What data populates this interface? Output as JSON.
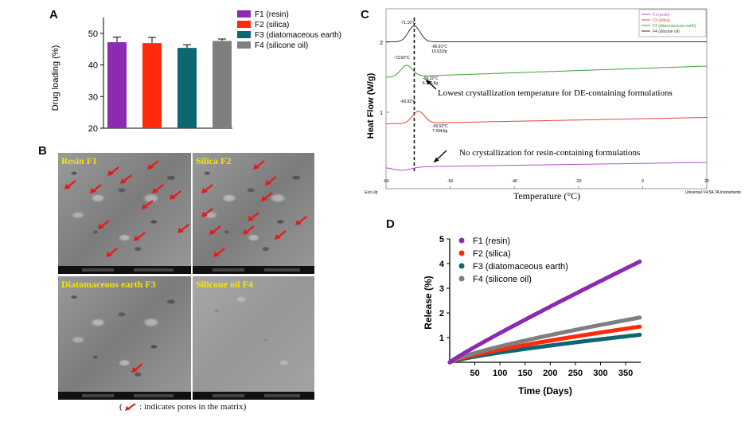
{
  "panels": {
    "a": "A",
    "b": "B",
    "c": "C",
    "d": "D"
  },
  "colors": {
    "f1": "#8a2bb0",
    "f2": "#ff2a0a",
    "f3": "#0e6672",
    "f4": "#7f7f7f",
    "arrow": "#e31b1b",
    "sem_label": "#f5e600"
  },
  "chart_data": [
    {
      "id": "A",
      "type": "bar",
      "categories": [
        "F1 (resin)",
        "F2 (silica)",
        "F3 (diatomaceous earth)",
        "F4 (silicone oil)"
      ],
      "values": [
        47.2,
        46.9,
        45.4,
        47.6
      ],
      "errors": [
        1.6,
        1.8,
        1.0,
        0.6
      ],
      "ylabel": "Drug loading (%)",
      "ylim": [
        20,
        55
      ],
      "yticks": [
        "20",
        "30",
        "40",
        "50"
      ],
      "legend": [
        "F1 (resin)",
        "F2 (silica)",
        "F3 (diatomaceous earth)",
        "F4 (silicone oil)"
      ],
      "legend_position": "top-right"
    },
    {
      "id": "C",
      "type": "line",
      "xlabel": "Temperature (°C)",
      "ylabel": "Heat Flow (W/g)",
      "xlim": [
        -80,
        20
      ],
      "xticks": [
        "-80",
        "-60",
        "-40",
        "-20",
        "0",
        "20"
      ],
      "yticks": [
        "2",
        "1"
      ],
      "legend": [
        "F1 (resin)",
        "F2 (silica)",
        "F3 (diatomaceous earth)",
        "F4 (silicone oil)"
      ],
      "legend_position": "top-right",
      "peaks": [
        {
          "series": "F4 (silicone oil)",
          "peak": "-71.16°C",
          "onset": "-66.91°C",
          "enthalpy": "10.63J/g"
        },
        {
          "series": "F3 (diatomaceous earth)",
          "peak": "-73.60°C",
          "onset": "-69.22°C",
          "enthalpy": "6.326J/g"
        },
        {
          "series": "F2 (silica)",
          "peak": "-69.93°C",
          "onset": "-66.52°C",
          "enthalpy": "7.394J/g"
        }
      ],
      "annotations": [
        "Lowest crystallization temperature for DE-containing formulations",
        "No crystallization for resin-containing formulations"
      ],
      "footer_left": "Exo Up",
      "footer_right": "Universal V4.5A TA Instruments"
    },
    {
      "id": "D",
      "type": "scatter",
      "xlabel": "Time (Days)",
      "ylabel": "Release (%)",
      "xlim": [
        0,
        380
      ],
      "ylim": [
        0,
        5
      ],
      "xticks": [
        "50",
        "100",
        "150",
        "200",
        "250",
        "300",
        "350"
      ],
      "yticks": [
        "1",
        "2",
        "3",
        "4",
        "5"
      ],
      "legend_position": "top-left",
      "series": [
        {
          "name": "F1 (resin)",
          "rate": 4.1
        },
        {
          "name": "F2 (silica)",
          "rate": 1.45
        },
        {
          "name": "F3 (diatomaceous earth)",
          "rate": 1.12
        },
        {
          "name": "F4 (silicone oil)",
          "rate": 1.82
        }
      ],
      "x_end": 380
    }
  ],
  "sem_images": [
    {
      "label": "Resin  F1",
      "variant": "porous"
    },
    {
      "label": "Silica  F2",
      "variant": "porous"
    },
    {
      "label": "Diatomaceous earth  F3",
      "variant": "porous"
    },
    {
      "label": "Silicone oil  F4",
      "variant": "smooth"
    }
  ],
  "sem_caption": ": indicates pores in the matrix",
  "sem_caption_open": "(",
  "sem_caption_close": ")"
}
